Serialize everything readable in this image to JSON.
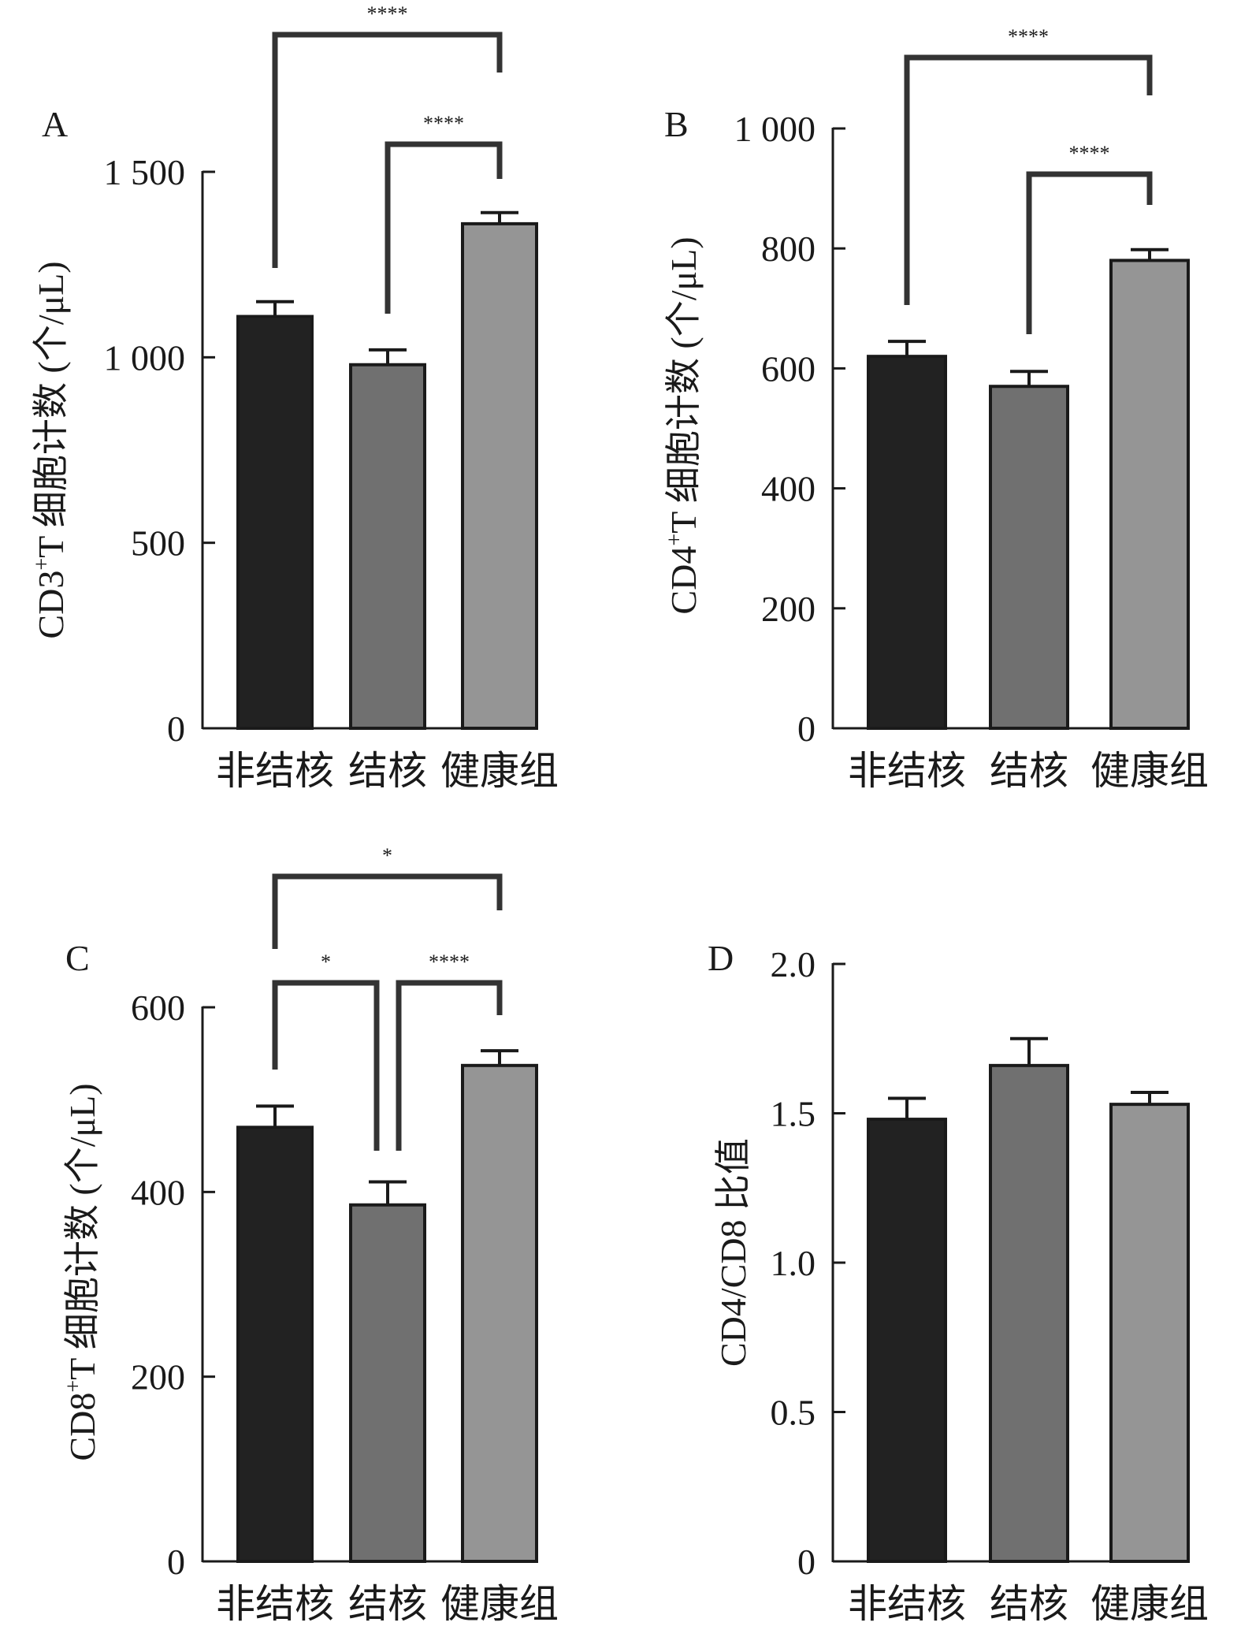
{
  "chart_data": [
    {
      "panel": "A",
      "type": "bar",
      "categories": [
        "非结核",
        "结核",
        "健康组"
      ],
      "values": [
        1110,
        980,
        1360
      ],
      "errors": [
        40,
        40,
        30
      ],
      "bar_colors": [
        "#222222",
        "#707070",
        "#959595"
      ],
      "ylabel": "CD3+T 细胞计数 (个/μL)",
      "ylabel_main": "CD3",
      "ylabel_sup": "+",
      "ylabel_rest": "T 细胞计数 (个/μL)",
      "ylim": [
        0,
        1500
      ],
      "yticks": [
        0,
        500,
        1000,
        1500
      ],
      "ytick_labels": [
        "0",
        "500",
        "1 000",
        "1 500"
      ],
      "significance": [
        {
          "from": 0,
          "to": 2,
          "label": "****"
        },
        {
          "from": 1,
          "to": 2,
          "label": "****"
        }
      ]
    },
    {
      "panel": "B",
      "type": "bar",
      "categories": [
        "非结核",
        "结核",
        "健康组"
      ],
      "values": [
        620,
        570,
        780
      ],
      "errors": [
        25,
        25,
        18
      ],
      "bar_colors": [
        "#222222",
        "#707070",
        "#959595"
      ],
      "ylabel": "CD4+T 细胞计数 (个/μL)",
      "ylabel_main": "CD4",
      "ylabel_sup": "+",
      "ylabel_rest": "T 细胞计数 (个/μL)",
      "ylim": [
        0,
        1000
      ],
      "yticks": [
        0,
        200,
        400,
        600,
        800,
        1000
      ],
      "ytick_labels": [
        "0",
        "200",
        "400",
        "600",
        "800",
        "1 000"
      ],
      "significance": [
        {
          "from": 0,
          "to": 2,
          "label": "****"
        },
        {
          "from": 1,
          "to": 2,
          "label": "****"
        }
      ]
    },
    {
      "panel": "C",
      "type": "bar",
      "categories": [
        "非结核",
        "结核",
        "健康组"
      ],
      "values": [
        470,
        386,
        537
      ],
      "errors": [
        23,
        25,
        16
      ],
      "bar_colors": [
        "#222222",
        "#707070",
        "#959595"
      ],
      "ylabel": "CD8+T 细胞计数 (个/μL)",
      "ylabel_main": "CD8",
      "ylabel_sup": "+",
      "ylabel_rest": "T 细胞计数 (个/μL)",
      "ylim": [
        0,
        600
      ],
      "yticks": [
        0,
        200,
        400,
        600
      ],
      "ytick_labels": [
        "0",
        "200",
        "400",
        "600"
      ],
      "significance": [
        {
          "from": 0,
          "to": 2,
          "label": "*"
        },
        {
          "from": 0,
          "to": 1,
          "label": "*"
        },
        {
          "from": 1,
          "to": 2,
          "label": "****"
        }
      ]
    },
    {
      "panel": "D",
      "type": "bar",
      "categories": [
        "非结核",
        "结核",
        "健康组"
      ],
      "values": [
        1.48,
        1.66,
        1.53
      ],
      "errors": [
        0.07,
        0.09,
        0.04
      ],
      "bar_colors": [
        "#222222",
        "#707070",
        "#959595"
      ],
      "ylabel": "CD4/CD8 比值",
      "ylabel_main": "CD4/CD8 比值",
      "ylabel_sup": "",
      "ylabel_rest": "",
      "ylim": [
        0,
        2
      ],
      "yticks": [
        0,
        0.5,
        1.0,
        1.5,
        2.0
      ],
      "ytick_labels": [
        "0",
        "0.5",
        "1.0",
        "1.5",
        "2.0"
      ],
      "significance": []
    }
  ]
}
